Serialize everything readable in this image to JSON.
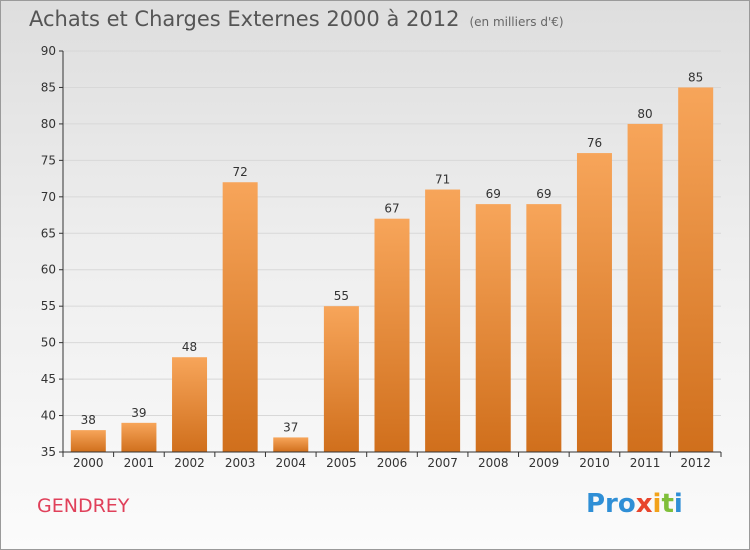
{
  "title": "Achats et Charges Externes 2000 à 2012",
  "unit": "(en milliers d'€)",
  "place": "GENDREY",
  "logo": {
    "p1": "Pro",
    "p2": "x",
    "p3": "i",
    "p4": "t",
    "p5": "i"
  },
  "colors": {
    "bar_top": "#f7a55a",
    "bar_bottom": "#d06f1c",
    "axis": "#333333",
    "grid": "#d8d8d8",
    "place": "#e0405a"
  },
  "chart_data": {
    "type": "bar",
    "title": "Achats et Charges Externes 2000 à 2012",
    "subtitle": "(en milliers d'€)",
    "xlabel": "",
    "ylabel": "",
    "categories": [
      "2000",
      "2001",
      "2002",
      "2003",
      "2004",
      "2005",
      "2006",
      "2007",
      "2008",
      "2009",
      "2010",
      "2011",
      "2012"
    ],
    "values": [
      38,
      39,
      48,
      72,
      37,
      55,
      67,
      71,
      69,
      69,
      76,
      80,
      85
    ],
    "ylim": [
      35,
      90
    ],
    "yticks": [
      35,
      40,
      45,
      50,
      55,
      60,
      65,
      70,
      75,
      80,
      85,
      90
    ],
    "grid": true,
    "legend": "none"
  }
}
